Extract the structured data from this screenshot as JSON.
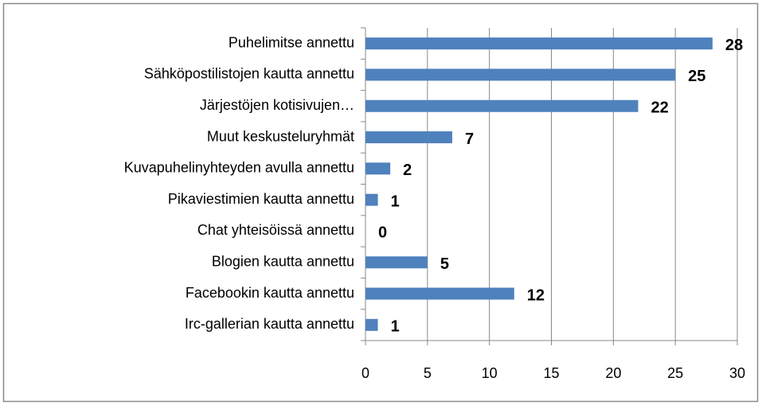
{
  "chart_data": {
    "type": "hbar",
    "categories": [
      "Puhelimitse annettu",
      "Sähköpostilistojen kautta annettu",
      "Järjestöjen kotisivujen…",
      "Muut keskusteluryhmät",
      "Kuvapuhelinyhteyden avulla annettu",
      "Pikaviestimien kautta annettu",
      "Chat yhteisöissä annettu",
      "Blogien kautta annettu",
      "Facebookin kautta annettu",
      "Irc-gallerian kautta annettu"
    ],
    "values": [
      28,
      25,
      22,
      7,
      2,
      1,
      0,
      5,
      12,
      1
    ],
    "color": "#4f81bd",
    "xlim": [
      0,
      30
    ],
    "xticks": [
      0,
      5,
      10,
      15,
      20,
      25,
      30
    ],
    "grid": true
  }
}
